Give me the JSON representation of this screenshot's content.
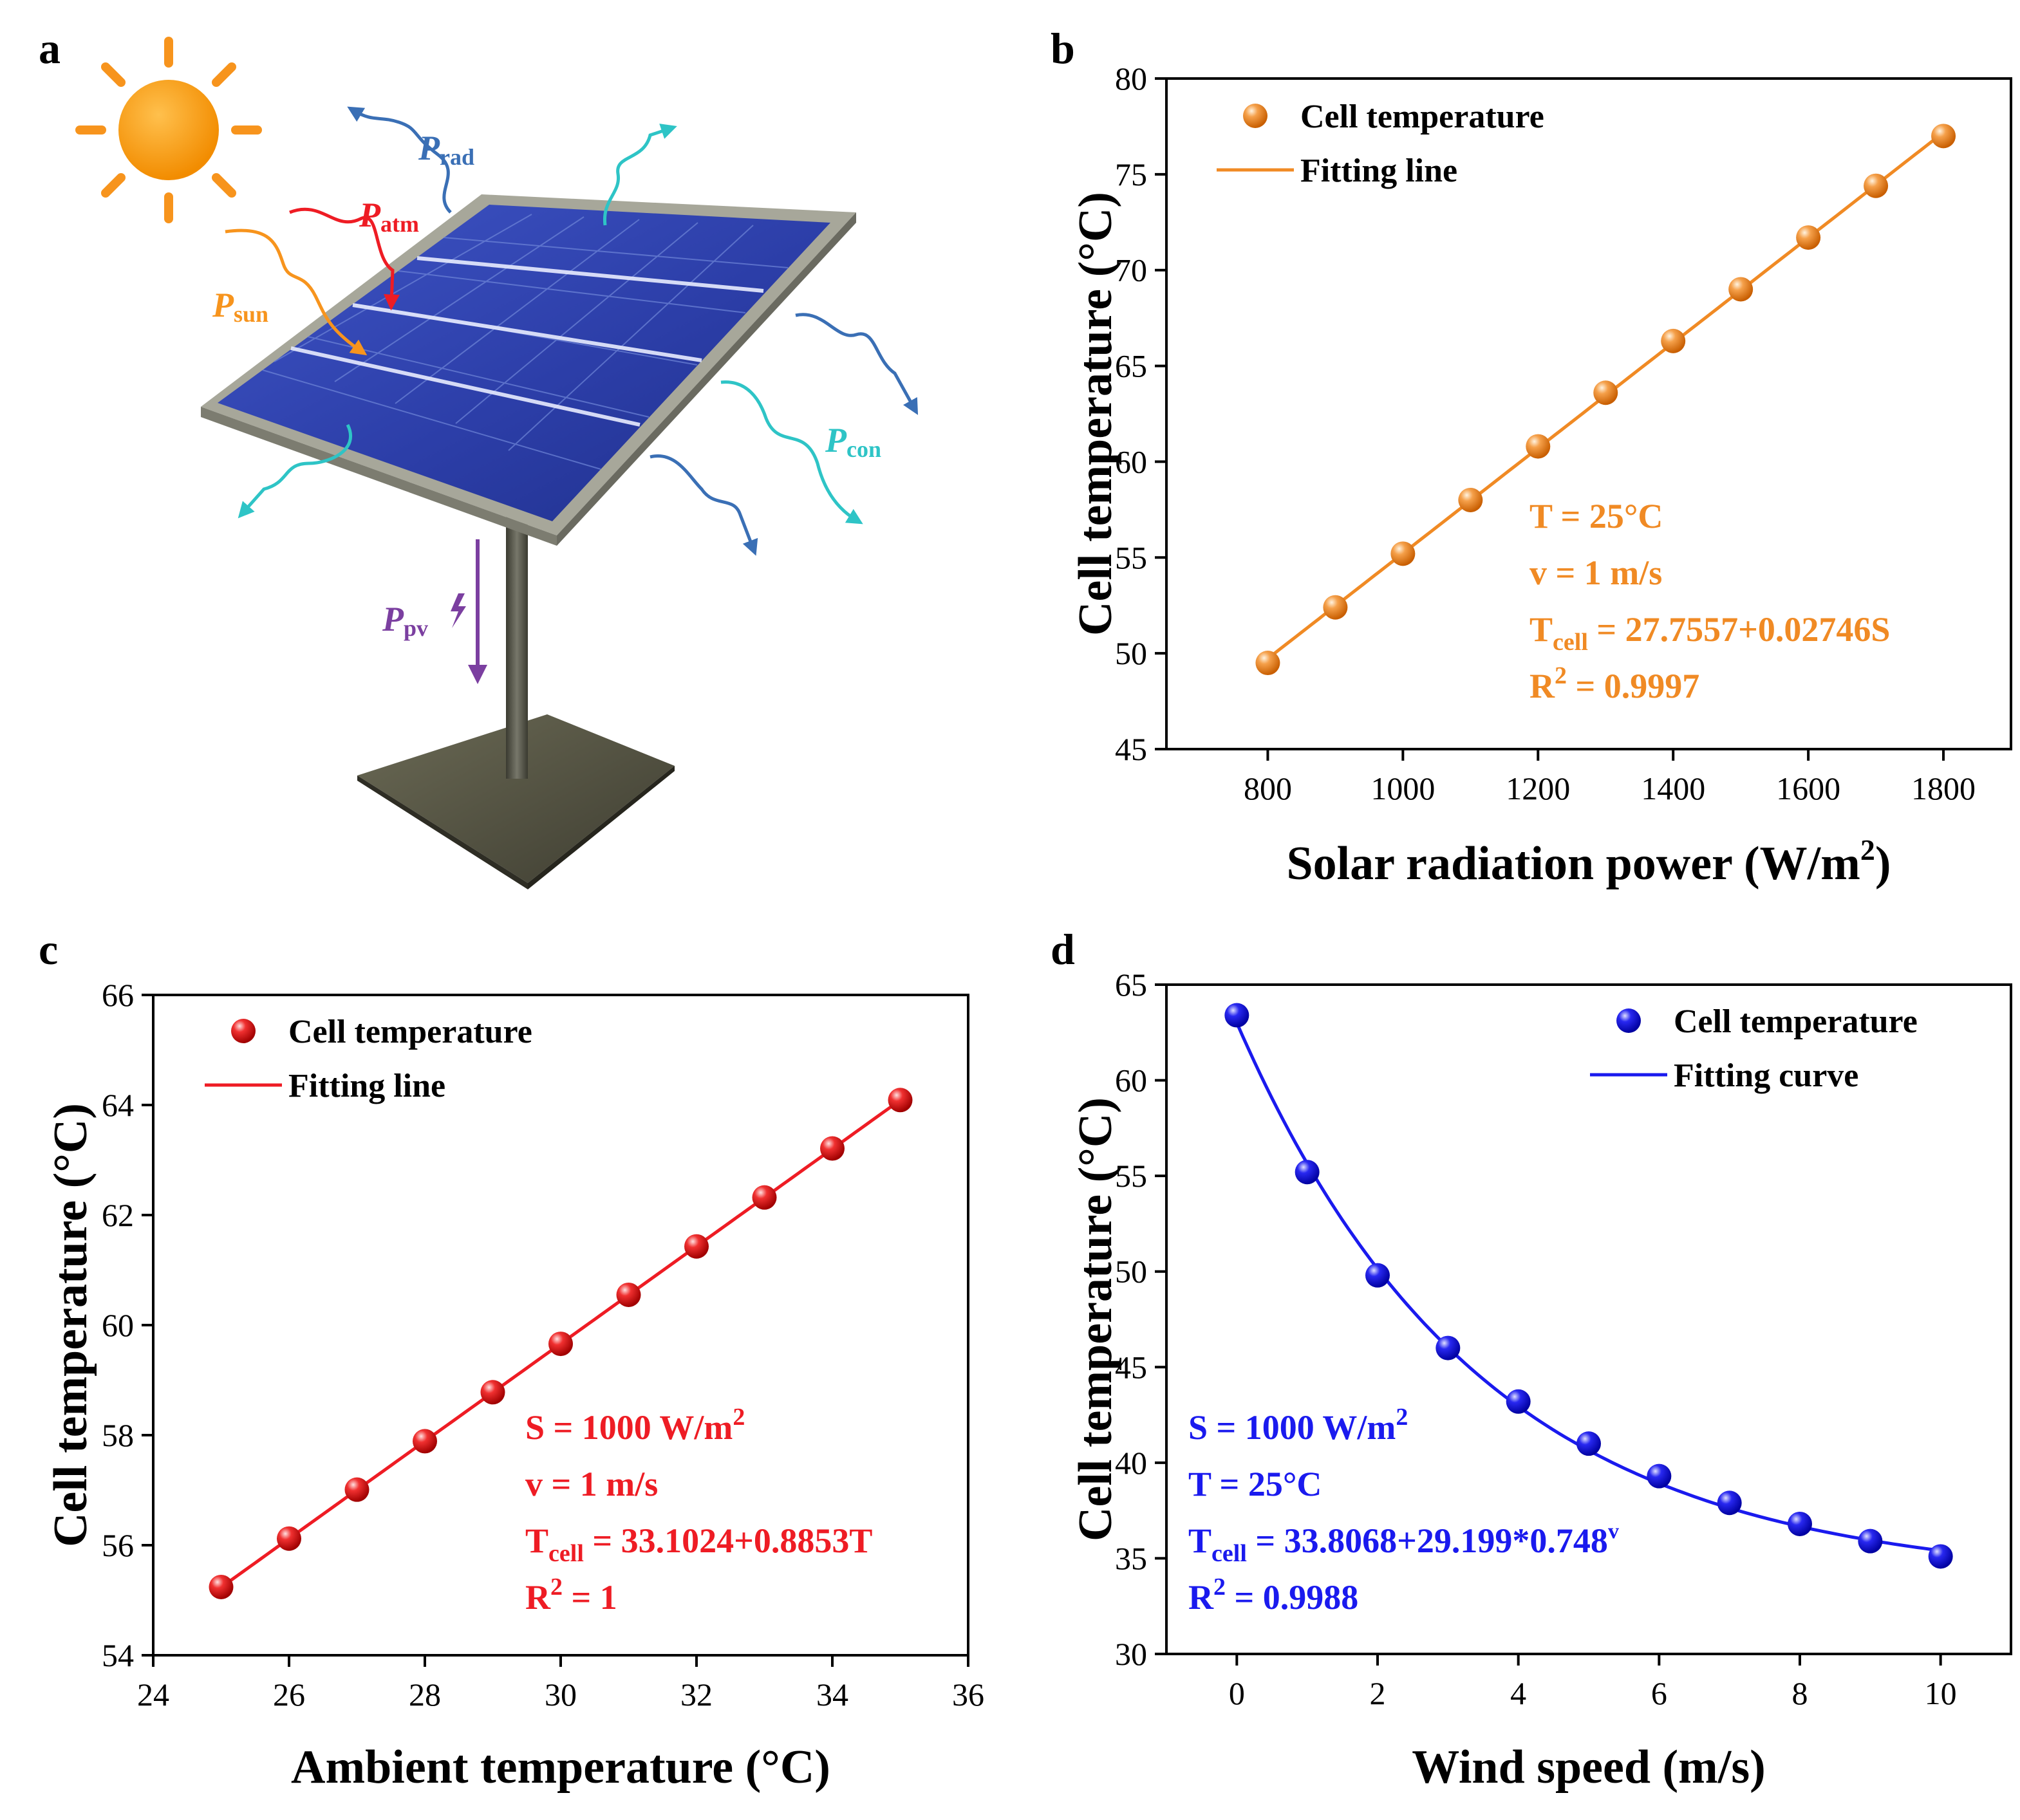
{
  "panels": {
    "a": {
      "letter": "a",
      "labels": {
        "p_rad": "P",
        "p_rad_sub": "rad",
        "p_atm": "P",
        "p_atm_sub": "atm",
        "p_sun": "P",
        "p_sun_sub": "sun",
        "p_con": "P",
        "p_con_sub": "con",
        "p_pv": "P",
        "p_pv_sub": "pv"
      },
      "colors": {
        "sun": "#f7941d",
        "rad": "#3a6fb5",
        "atm": "#ee1c24",
        "con": "#2ec4c6",
        "pv": "#7b3fa0"
      }
    },
    "b": {
      "letter": "b"
    },
    "c": {
      "letter": "c"
    },
    "d": {
      "letter": "d"
    }
  },
  "chart_data": [
    {
      "panel": "b",
      "type": "line",
      "xlabel": "Solar radiation power (W/m",
      "xlabel_sup": "2",
      "xlabel_end": ")",
      "ylabel": "Cell temperature (°C)",
      "xlim": [
        650,
        1900
      ],
      "ylim": [
        45,
        80
      ],
      "xticks": [
        800,
        1000,
        1200,
        1400,
        1600,
        1800
      ],
      "yticks": [
        45,
        50,
        55,
        60,
        65,
        70,
        75,
        80
      ],
      "color": "#f08a24",
      "series": [
        {
          "name": "Cell temperature",
          "kind": "points",
          "x": [
            800,
            900,
            1000,
            1100,
            1200,
            1300,
            1400,
            1500,
            1600,
            1700,
            1800
          ],
          "y": [
            49.5,
            52.4,
            55.2,
            58.0,
            60.8,
            63.6,
            66.3,
            69.0,
            71.7,
            74.4,
            77.0
          ]
        },
        {
          "name": "Fitting line",
          "kind": "fit",
          "model": "linear",
          "a": 27.7557,
          "b": 0.02746,
          "range": [
            800,
            1800
          ]
        }
      ],
      "legend": {
        "points": "Cell temperature",
        "line": "Fitting line",
        "position": "top-left"
      },
      "annotations": [
        {
          "text": "T = 25°C"
        },
        {
          "text": "v = 1 m/s"
        },
        {
          "text": "T",
          "sub": "cell",
          "rest": " = 27.7557+0.02746S"
        },
        {
          "text": "R",
          "sup": "2",
          "rest": " = 0.9997"
        }
      ]
    },
    {
      "panel": "c",
      "type": "line",
      "xlabel": "Ambient temperature (°C)",
      "ylabel": "Cell temperature (°C)",
      "xlim": [
        24,
        36
      ],
      "ylim": [
        54,
        66
      ],
      "xticks": [
        24,
        26,
        28,
        30,
        32,
        34,
        36
      ],
      "yticks": [
        54,
        56,
        58,
        60,
        62,
        64,
        66
      ],
      "color": "#ee1c24",
      "series": [
        {
          "name": "Cell temperature",
          "kind": "points",
          "x": [
            25,
            26,
            27,
            28,
            29,
            30,
            31,
            32,
            33,
            34,
            35
          ],
          "y": [
            55.24,
            56.12,
            57.01,
            57.89,
            58.78,
            59.66,
            60.55,
            61.43,
            62.32,
            63.21,
            64.09
          ]
        },
        {
          "name": "Fitting line",
          "kind": "fit",
          "model": "linear",
          "a": 33.1024,
          "b": 0.8853,
          "range": [
            25,
            35
          ]
        }
      ],
      "legend": {
        "points": "Cell temperature",
        "line": "Fitting line",
        "position": "top-left"
      },
      "annotations": [
        {
          "text": "S = 1000 W/m",
          "sup": "2"
        },
        {
          "text": "v = 1 m/s"
        },
        {
          "text": "T",
          "sub": "cell",
          "rest": " = 33.1024+0.8853T"
        },
        {
          "text": "R",
          "sup": "2",
          "rest": " = 1"
        }
      ]
    },
    {
      "panel": "d",
      "type": "line",
      "xlabel": "Wind speed (m/s)",
      "ylabel": "Cell temperature (°C)",
      "xlim": [
        -1,
        11
      ],
      "ylim": [
        30,
        65
      ],
      "xticks": [
        0,
        2,
        4,
        6,
        8,
        10
      ],
      "yticks": [
        30,
        35,
        40,
        45,
        50,
        55,
        60,
        65
      ],
      "color": "#1a1aee",
      "series": [
        {
          "name": "Cell temperature",
          "kind": "points",
          "x": [
            0,
            1,
            2,
            3,
            4,
            5,
            6,
            7,
            8,
            9,
            10
          ],
          "y": [
            63.4,
            55.2,
            49.8,
            46.0,
            43.2,
            41.0,
            39.3,
            37.9,
            36.8,
            35.9,
            35.1
          ]
        },
        {
          "name": "Fitting curve",
          "kind": "fit",
          "model": "exp",
          "a": 33.8068,
          "b": 29.199,
          "c": 0.748,
          "range": [
            0,
            10
          ]
        }
      ],
      "legend": {
        "points": "Cell temperature",
        "line": "Fitting curve",
        "position": "top-right"
      },
      "annotations": [
        {
          "text": "S = 1000 W/m",
          "sup": "2"
        },
        {
          "text": "T = 25°C"
        },
        {
          "text": "T",
          "sub": "cell",
          "rest": " = 33.8068+29.199*0.748",
          "sup2": "v"
        },
        {
          "text": "R",
          "sup": "2",
          "rest": " = 0.9988"
        }
      ]
    }
  ]
}
